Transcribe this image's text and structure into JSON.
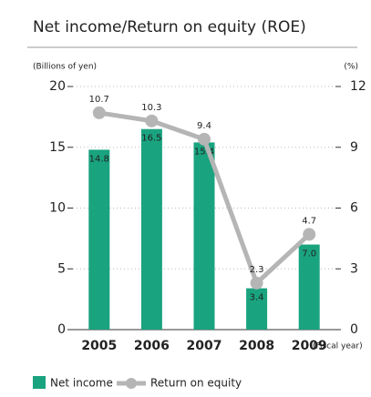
{
  "chart_data": {
    "type": "bar",
    "title": "Net income/Return on equity (ROE)",
    "y_label": "(Billions of yen)",
    "y2_label": "(%)",
    "x_label": "(Fiscal year)",
    "categories": [
      "2005",
      "2006",
      "2007",
      "2008",
      "2009"
    ],
    "series": [
      {
        "name": "Net income",
        "type": "bar",
        "color": "#1aa37f",
        "values": [
          14.8,
          16.5,
          15.4,
          3.4,
          7.0
        ],
        "value_labels": [
          "14.8",
          "16.5",
          "15.4",
          "3.4",
          "7.0"
        ]
      },
      {
        "name": "Return on equity",
        "type": "line",
        "axis": "y2",
        "color": "#b5b5b5",
        "values": [
          10.7,
          10.3,
          9.4,
          2.3,
          4.7
        ]
      }
    ],
    "ylim": [
      0,
      20
    ],
    "yticks": [
      0,
      5,
      10,
      15,
      20
    ],
    "y2lim": [
      0,
      12
    ],
    "y2ticks": [
      0,
      3,
      6,
      9,
      12
    ],
    "grid": true
  }
}
